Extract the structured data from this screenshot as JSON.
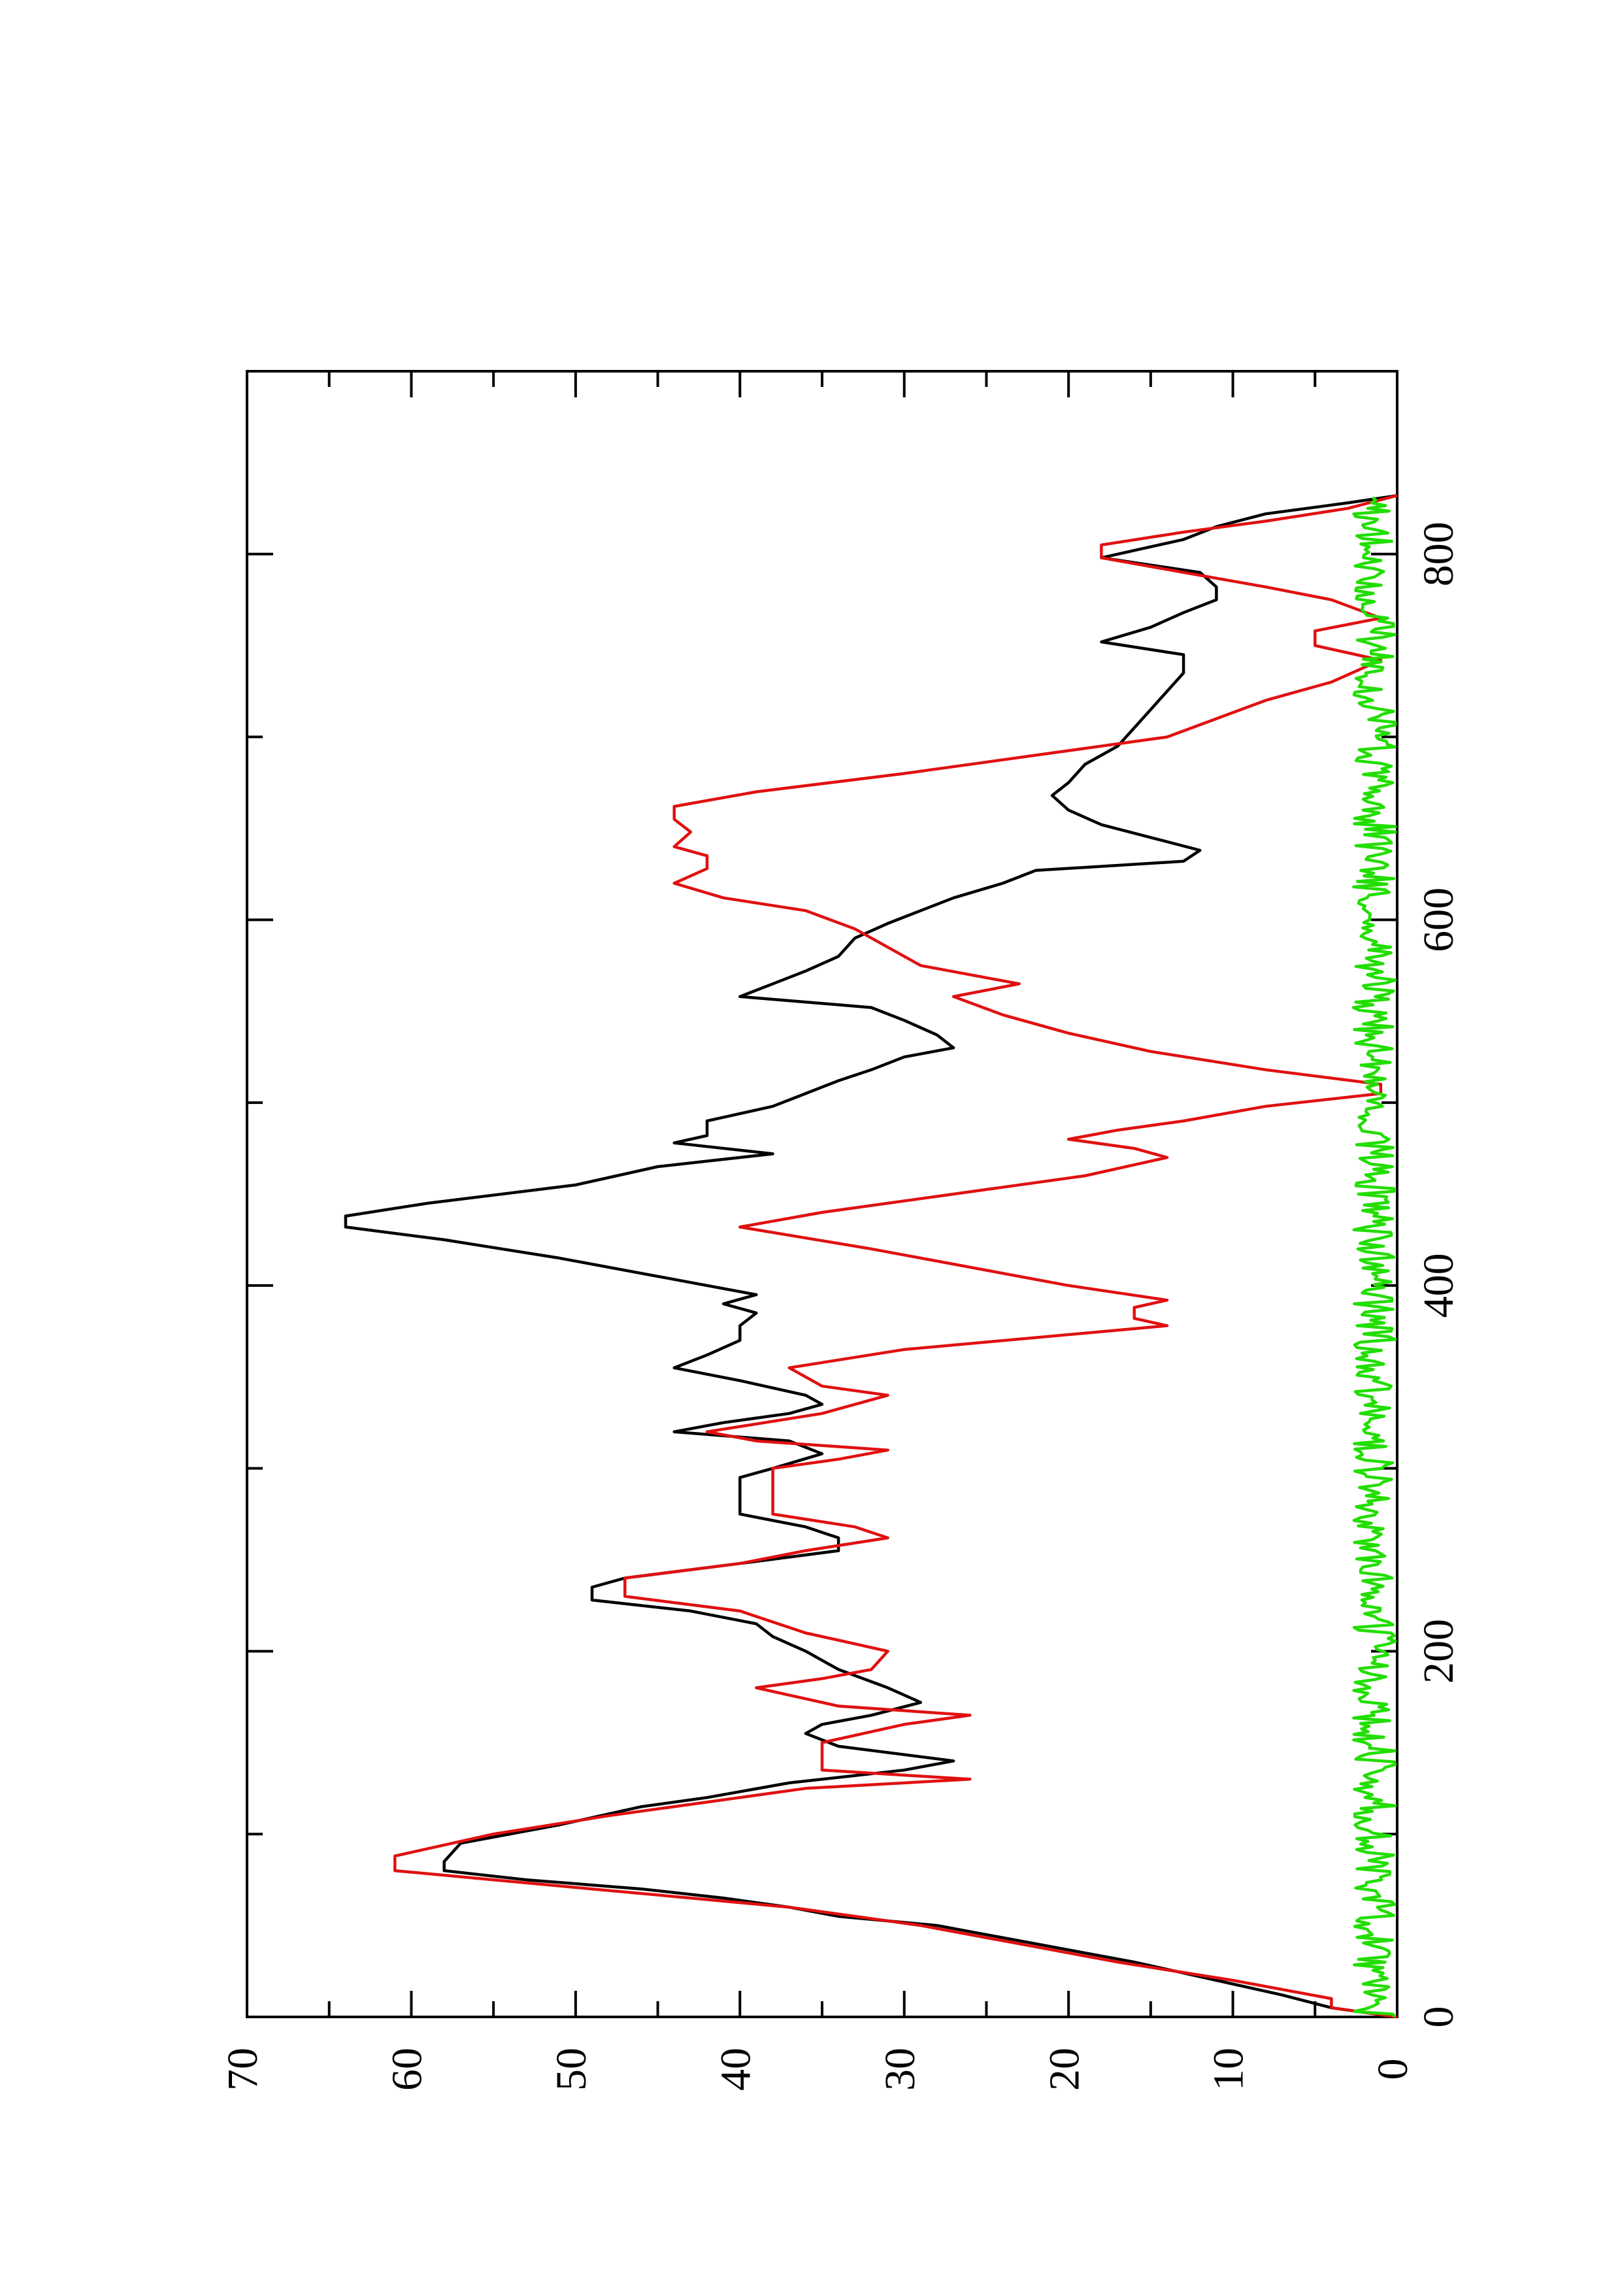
{
  "chart_data": {
    "type": "line",
    "title": "",
    "xlabel": "",
    "ylabel": "",
    "orientation": "rotated-90-ccw",
    "xlim": [
      0,
      900
    ],
    "ylim": [
      0,
      70
    ],
    "x_ticks": [
      0,
      200,
      400,
      600,
      800
    ],
    "x_tick_labels": [
      "0",
      "200",
      "400",
      "600",
      "800"
    ],
    "x_minor_ticks": [
      100,
      300,
      500,
      700
    ],
    "y_ticks": [
      0,
      10,
      20,
      30,
      40,
      50,
      60,
      70
    ],
    "y_tick_labels": [
      "0",
      "10",
      "20",
      "30",
      "40",
      "50",
      "60",
      "70"
    ],
    "y_minor_ticks": [
      5,
      15,
      25,
      35,
      45,
      55,
      65
    ],
    "grid": false,
    "legend": "none",
    "series": [
      {
        "color": "#000000",
        "points": [
          [
            0,
            0
          ],
          [
            5,
            4
          ],
          [
            12,
            7
          ],
          [
            20,
            11
          ],
          [
            30,
            16
          ],
          [
            40,
            22
          ],
          [
            50,
            28
          ],
          [
            55,
            34
          ],
          [
            60,
            37
          ],
          [
            65,
            41
          ],
          [
            70,
            46
          ],
          [
            75,
            53
          ],
          [
            80,
            58
          ],
          [
            85,
            58
          ],
          [
            95,
            57
          ],
          [
            105,
            51
          ],
          [
            115,
            46
          ],
          [
            120,
            42
          ],
          [
            128,
            37
          ],
          [
            135,
            30
          ],
          [
            140,
            27
          ],
          [
            148,
            34
          ],
          [
            155,
            36
          ],
          [
            160,
            35
          ],
          [
            165,
            32
          ],
          [
            172,
            29
          ],
          [
            180,
            31
          ],
          [
            190,
            34
          ],
          [
            200,
            36
          ],
          [
            208,
            38
          ],
          [
            215,
            39
          ],
          [
            222,
            43
          ],
          [
            228,
            49
          ],
          [
            235,
            49
          ],
          [
            240,
            47
          ],
          [
            248,
            40
          ],
          [
            255,
            34
          ],
          [
            262,
            34
          ],
          [
            268,
            36
          ],
          [
            275,
            40
          ],
          [
            285,
            40
          ],
          [
            295,
            40
          ],
          [
            300,
            38
          ],
          [
            308,
            35
          ],
          [
            315,
            37
          ],
          [
            320,
            44
          ],
          [
            325,
            41
          ],
          [
            330,
            37
          ],
          [
            335,
            35
          ],
          [
            340,
            36
          ],
          [
            348,
            40
          ],
          [
            355,
            44
          ],
          [
            362,
            42
          ],
          [
            370,
            40
          ],
          [
            378,
            40
          ],
          [
            385,
            39
          ],
          [
            390,
            41
          ],
          [
            395,
            39
          ],
          [
            400,
            42
          ],
          [
            405,
            45
          ],
          [
            415,
            51
          ],
          [
            425,
            58
          ],
          [
            432,
            64
          ],
          [
            438,
            64
          ],
          [
            445,
            59
          ],
          [
            455,
            50
          ],
          [
            465,
            45
          ],
          [
            472,
            38
          ],
          [
            478,
            44
          ],
          [
            482,
            42
          ],
          [
            490,
            42
          ],
          [
            498,
            38
          ],
          [
            505,
            36
          ],
          [
            512,
            34
          ],
          [
            518,
            32
          ],
          [
            525,
            30
          ],
          [
            530,
            27
          ],
          [
            537,
            28
          ],
          [
            545,
            30
          ],
          [
            552,
            32
          ],
          [
            558,
            40
          ],
          [
            565,
            38
          ],
          [
            572,
            36
          ],
          [
            580,
            34
          ],
          [
            590,
            33
          ],
          [
            598,
            31
          ],
          [
            605,
            29
          ],
          [
            612,
            27
          ],
          [
            620,
            24
          ],
          [
            627,
            22
          ],
          [
            632,
            13
          ],
          [
            638,
            12
          ],
          [
            645,
            15
          ],
          [
            652,
            18
          ],
          [
            660,
            20
          ],
          [
            668,
            21
          ],
          [
            675,
            20
          ],
          [
            685,
            19
          ],
          [
            695,
            17
          ],
          [
            705,
            16
          ],
          [
            715,
            15
          ],
          [
            725,
            14
          ],
          [
            735,
            13
          ],
          [
            745,
            13
          ],
          [
            752,
            18
          ],
          [
            760,
            15
          ],
          [
            768,
            13
          ],
          [
            775,
            11
          ],
          [
            782,
            11
          ],
          [
            790,
            12
          ],
          [
            798,
            18
          ],
          [
            802,
            16
          ],
          [
            808,
            13
          ],
          [
            815,
            11
          ],
          [
            822,
            8
          ],
          [
            828,
            3
          ],
          [
            832,
            0
          ]
        ]
      },
      {
        "color": "#e01010",
        "points": [
          [
            0,
            0
          ],
          [
            5,
            4
          ],
          [
            10,
            4
          ],
          [
            20,
            10
          ],
          [
            30,
            17
          ],
          [
            40,
            23
          ],
          [
            50,
            29
          ],
          [
            60,
            37
          ],
          [
            65,
            43
          ],
          [
            70,
            49
          ],
          [
            75,
            55
          ],
          [
            80,
            61
          ],
          [
            88,
            61
          ],
          [
            100,
            55
          ],
          [
            110,
            48
          ],
          [
            120,
            40
          ],
          [
            125,
            36
          ],
          [
            130,
            26
          ],
          [
            135,
            35
          ],
          [
            150,
            35
          ],
          [
            160,
            30
          ],
          [
            165,
            26
          ],
          [
            170,
            34
          ],
          [
            180,
            39
          ],
          [
            185,
            35
          ],
          [
            190,
            32
          ],
          [
            200,
            31
          ],
          [
            210,
            36
          ],
          [
            222,
            40
          ],
          [
            230,
            47
          ],
          [
            240,
            47
          ],
          [
            248,
            40
          ],
          [
            255,
            36
          ],
          [
            262,
            31
          ],
          [
            268,
            33
          ],
          [
            275,
            38
          ],
          [
            300,
            38
          ],
          [
            305,
            34
          ],
          [
            310,
            31
          ],
          [
            315,
            39
          ],
          [
            320,
            42
          ],
          [
            330,
            35
          ],
          [
            340,
            31
          ],
          [
            345,
            35
          ],
          [
            355,
            37
          ],
          [
            365,
            30
          ],
          [
            378,
            14
          ],
          [
            382,
            16
          ],
          [
            388,
            16
          ],
          [
            392,
            14
          ],
          [
            400,
            20
          ],
          [
            420,
            32
          ],
          [
            432,
            40
          ],
          [
            440,
            35
          ],
          [
            450,
            27
          ],
          [
            460,
            19
          ],
          [
            470,
            14
          ],
          [
            475,
            16
          ],
          [
            480,
            20
          ],
          [
            485,
            17
          ],
          [
            490,
            13
          ],
          [
            498,
            8
          ],
          [
            505,
            1
          ],
          [
            510,
            1
          ],
          [
            518,
            8
          ],
          [
            528,
            15
          ],
          [
            538,
            20
          ],
          [
            548,
            24
          ],
          [
            558,
            27
          ],
          [
            565,
            23
          ],
          [
            570,
            26
          ],
          [
            575,
            29
          ],
          [
            585,
            31
          ],
          [
            595,
            33
          ],
          [
            605,
            36
          ],
          [
            612,
            41
          ],
          [
            620,
            44
          ],
          [
            628,
            42
          ],
          [
            635,
            42
          ],
          [
            640,
            44
          ],
          [
            648,
            43
          ],
          [
            655,
            44
          ],
          [
            662,
            44
          ],
          [
            670,
            39
          ],
          [
            680,
            30
          ],
          [
            690,
            22
          ],
          [
            700,
            14
          ],
          [
            710,
            11
          ],
          [
            720,
            8
          ],
          [
            730,
            4
          ],
          [
            742,
            1
          ],
          [
            750,
            5
          ],
          [
            758,
            5
          ],
          [
            765,
            1
          ],
          [
            775,
            4
          ],
          [
            782,
            8
          ],
          [
            790,
            13
          ],
          [
            798,
            18
          ],
          [
            805,
            18
          ],
          [
            812,
            13
          ],
          [
            818,
            8
          ],
          [
            825,
            3
          ],
          [
            832,
            0
          ]
        ]
      },
      {
        "color": "#22dd00",
        "noise_seed": 7,
        "baseline": 1.0,
        "amplitude": 1.6,
        "x_range": [
          0,
          832
        ]
      }
    ]
  }
}
